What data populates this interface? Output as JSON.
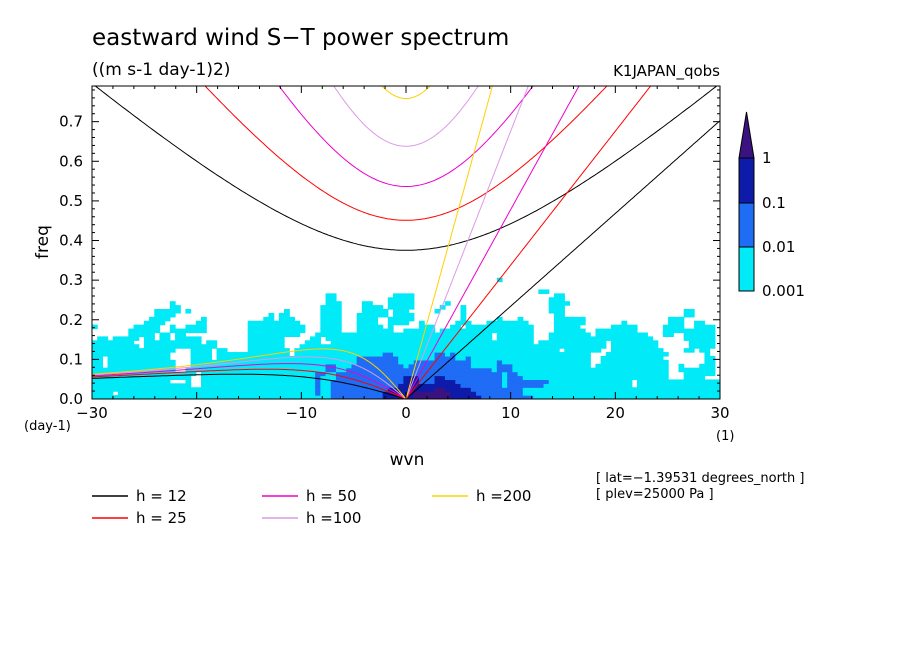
{
  "chart_data": {
    "type": "heatmap",
    "title": "eastward wind S−T power spectrum",
    "subtitle": "((m s-1 day-1)2)",
    "dataset": "K1JAPAN_qobs",
    "xlabel": "wvn",
    "ylabel": "freq",
    "x_unit": "(1)",
    "y_unit": "(day-1)",
    "xlim": [
      -30,
      30
    ],
    "ylim": [
      0,
      0.8
    ],
    "x_ticks": [
      -30,
      -20,
      -10,
      0,
      10,
      20,
      30
    ],
    "x_tick_labels": [
      "−30",
      "−20",
      "−10",
      "0",
      "10",
      "20",
      "30"
    ],
    "y_ticks": [
      0,
      0.1,
      0.2,
      0.3,
      0.4,
      0.5,
      0.6,
      0.7
    ],
    "y_tick_labels": [
      "0.0",
      "0.1",
      "0.2",
      "0.3",
      "0.4",
      "0.5",
      "0.6",
      "0.7"
    ],
    "colorbar": {
      "levels": [
        0.001,
        0.01,
        0.1,
        1
      ],
      "labels": [
        "0.001",
        "0.01",
        "0.1",
        "1"
      ],
      "colors": [
        "#ffffff",
        "#00eaf8",
        "#1f6cf5",
        "#0e1ba8",
        "#3a1380"
      ]
    },
    "dispersion_curves": [
      {
        "name": "h = 12",
        "h": 12,
        "color": "#000000"
      },
      {
        "name": "h = 25",
        "h": 25,
        "color": "#ff0000"
      },
      {
        "name": "h = 50",
        "h": 50,
        "color": "#ee00cc"
      },
      {
        "name": "h =100",
        "h": 100,
        "color": "#dd99e8"
      },
      {
        "name": "h =200",
        "h": 200,
        "color": "#ffd000"
      }
    ],
    "info": [
      "[ lat=−1.39531 degrees_north ]",
      "[ plev=25000 Pa ]"
    ]
  }
}
